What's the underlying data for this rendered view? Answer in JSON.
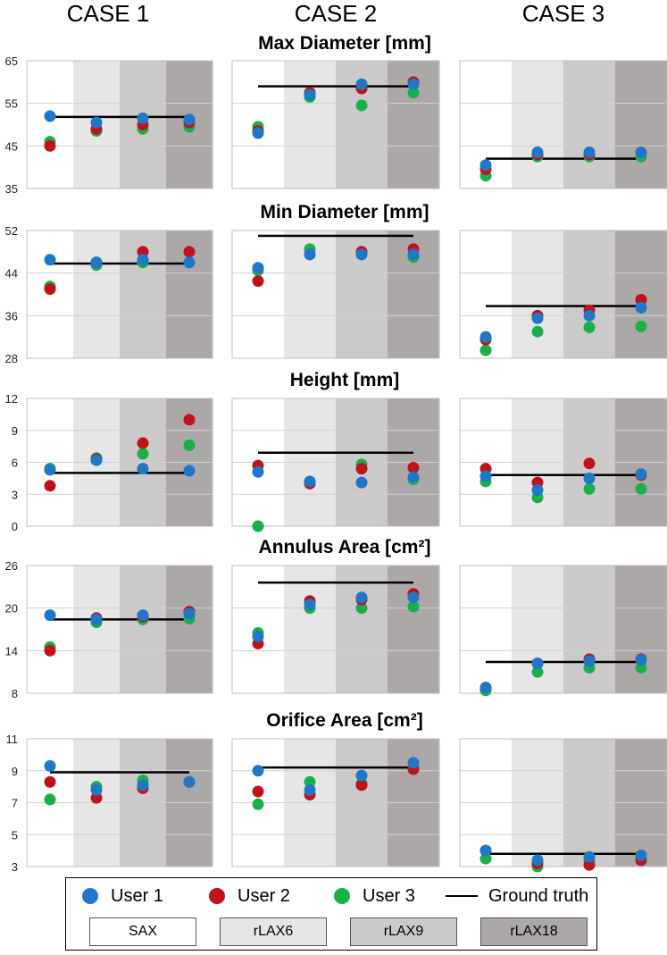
{
  "case_labels": [
    "CASE 1",
    "CASE 2",
    "CASE 3"
  ],
  "phase_labels": [
    "SAX",
    "rLAX6",
    "rLAX9",
    "rLAX18"
  ],
  "colors": {
    "user1": "#1f77c8",
    "user2": "#c0121a",
    "user3": "#19b04a",
    "ground_truth": "#000000",
    "band_sax": "#ffffff",
    "band_rlax6": "#e6e6e6",
    "band_rlax9": "#cbc9c9",
    "band_rlax18": "#ada8a8"
  },
  "legend": {
    "user1": "User 1",
    "user2": "User 2",
    "user3": "User 3",
    "ground_truth": "Ground truth",
    "sax": "SAX",
    "rlax6": "rLAX6",
    "rlax9": "rLAX9",
    "rlax18": "rLAX18"
  },
  "chart_data": [
    {
      "type": "scatter",
      "title": "Max Diameter [mm]",
      "ylim": [
        35,
        65
      ],
      "yticks": [
        "35",
        "45",
        "55",
        "65"
      ],
      "categories": [
        "SAX",
        "rLAX6",
        "rLAX9",
        "rLAX18"
      ],
      "cases": [
        {
          "name": "CASE 1",
          "ground_truth": 51.8,
          "series": [
            {
              "name": "User 1",
              "values": [
                52,
                50.5,
                51.5,
                51.2
              ]
            },
            {
              "name": "User 2",
              "values": [
                45,
                49,
                50,
                50.5
              ]
            },
            {
              "name": "User 3",
              "values": [
                46,
                48.5,
                49,
                49.5
              ]
            }
          ]
        },
        {
          "name": "CASE 2",
          "ground_truth": 59,
          "series": [
            {
              "name": "User 1",
              "values": [
                48,
                57,
                59.5,
                59.5
              ]
            },
            {
              "name": "User 2",
              "values": [
                48.5,
                57.5,
                58.5,
                60
              ]
            },
            {
              "name": "User 3",
              "values": [
                49.5,
                56.5,
                54.5,
                57.5
              ]
            }
          ]
        },
        {
          "name": "CASE 3",
          "ground_truth": 42,
          "series": [
            {
              "name": "User 1",
              "values": [
                40.5,
                43.5,
                43.5,
                43.5
              ]
            },
            {
              "name": "User 2",
              "values": [
                39.5,
                43,
                43,
                43.5
              ]
            },
            {
              "name": "User 3",
              "values": [
                38,
                42.5,
                42.5,
                42.5
              ]
            }
          ]
        }
      ]
    },
    {
      "type": "scatter",
      "title": "Min Diameter [mm]",
      "ylim": [
        28,
        52
      ],
      "yticks": [
        "28",
        "36",
        "44",
        "52"
      ],
      "categories": [
        "SAX",
        "rLAX6",
        "rLAX9",
        "rLAX18"
      ],
      "cases": [
        {
          "name": "CASE 1",
          "ground_truth": 45.8,
          "series": [
            {
              "name": "User 1",
              "values": [
                46.5,
                46,
                46.5,
                46
              ]
            },
            {
              "name": "User 2",
              "values": [
                41,
                46,
                48,
                48
              ]
            },
            {
              "name": "User 3",
              "values": [
                41.5,
                45.5,
                46,
                46
              ]
            }
          ]
        },
        {
          "name": "CASE 2",
          "ground_truth": 51,
          "series": [
            {
              "name": "User 1",
              "values": [
                45,
                47.5,
                47.5,
                47.5
              ]
            },
            {
              "name": "User 2",
              "values": [
                42.5,
                47.5,
                48,
                48.5
              ]
            },
            {
              "name": "User 3",
              "values": [
                44.5,
                48.5,
                47.5,
                47
              ]
            }
          ]
        },
        {
          "name": "CASE 3",
          "ground_truth": 37.8,
          "series": [
            {
              "name": "User 1",
              "values": [
                32,
                35.5,
                36,
                37.5
              ]
            },
            {
              "name": "User 2",
              "values": [
                31.5,
                36,
                37,
                39
              ]
            },
            {
              "name": "User 3",
              "values": [
                29.5,
                33,
                33.8,
                34
              ]
            }
          ]
        }
      ]
    },
    {
      "type": "scatter",
      "title": "Height [mm]",
      "ylim": [
        0,
        12
      ],
      "yticks": [
        "0",
        "3",
        "6",
        "9",
        "12"
      ],
      "categories": [
        "SAX",
        "rLAX6",
        "rLAX9",
        "rLAX18"
      ],
      "cases": [
        {
          "name": "CASE 1",
          "ground_truth": 5,
          "series": [
            {
              "name": "User 1",
              "values": [
                5.3,
                6.2,
                5.4,
                5.2
              ]
            },
            {
              "name": "User 2",
              "values": [
                3.8,
                6.3,
                7.8,
                10
              ]
            },
            {
              "name": "User 3",
              "values": [
                5.4,
                6.4,
                6.8,
                7.6
              ]
            }
          ]
        },
        {
          "name": "CASE 2",
          "ground_truth": 6.9,
          "series": [
            {
              "name": "User 1",
              "values": [
                5.1,
                4.2,
                4.1,
                4.6
              ]
            },
            {
              "name": "User 2",
              "values": [
                5.7,
                4,
                5.4,
                5.5
              ]
            },
            {
              "name": "User 3",
              "values": [
                0,
                4.2,
                5.8,
                4.4
              ]
            }
          ]
        },
        {
          "name": "CASE 3",
          "ground_truth": 4.8,
          "series": [
            {
              "name": "User 1",
              "values": [
                4.7,
                3.4,
                4.5,
                4.9
              ]
            },
            {
              "name": "User 2",
              "values": [
                5.4,
                4.1,
                5.9,
                4.8
              ]
            },
            {
              "name": "User 3",
              "values": [
                4.2,
                2.7,
                3.5,
                3.5
              ]
            }
          ]
        }
      ]
    },
    {
      "type": "scatter",
      "title": "Annulus Area [cm²]",
      "ylim": [
        8,
        26
      ],
      "yticks": [
        "8",
        "14",
        "20",
        "26"
      ],
      "categories": [
        "SAX",
        "rLAX6",
        "rLAX9",
        "rLAX18"
      ],
      "cases": [
        {
          "name": "CASE 1",
          "ground_truth": 18.4,
          "series": [
            {
              "name": "User 1",
              "values": [
                19,
                18.4,
                19,
                19.2
              ]
            },
            {
              "name": "User 2",
              "values": [
                14,
                18.6,
                18.8,
                19.5
              ]
            },
            {
              "name": "User 3",
              "values": [
                14.5,
                18,
                18.4,
                18.5
              ]
            }
          ]
        },
        {
          "name": "CASE 2",
          "ground_truth": 23.6,
          "series": [
            {
              "name": "User 1",
              "values": [
                16,
                20.5,
                21.5,
                21.5
              ]
            },
            {
              "name": "User 2",
              "values": [
                15,
                21,
                21.2,
                22
              ]
            },
            {
              "name": "User 3",
              "values": [
                16.5,
                20,
                20,
                20.2
              ]
            }
          ]
        },
        {
          "name": "CASE 3",
          "ground_truth": 12.4,
          "series": [
            {
              "name": "User 1",
              "values": [
                8.8,
                12.2,
                12.5,
                12.7
              ]
            },
            {
              "name": "User 2",
              "values": [
                8.8,
                12.2,
                12.8,
                12.8
              ]
            },
            {
              "name": "User 3",
              "values": [
                8.4,
                11,
                11.6,
                11.6
              ]
            }
          ]
        }
      ]
    },
    {
      "type": "scatter",
      "title": "Orifice Area [cm²]",
      "ylim": [
        3,
        11
      ],
      "yticks": [
        "3",
        "5",
        "7",
        "9",
        "11"
      ],
      "categories": [
        "SAX",
        "rLAX6",
        "rLAX9",
        "rLAX18"
      ],
      "cases": [
        {
          "name": "CASE 1",
          "ground_truth": 8.9,
          "series": [
            {
              "name": "User 1",
              "values": [
                9.3,
                7.8,
                8.1,
                8.3
              ]
            },
            {
              "name": "User 2",
              "values": [
                8.3,
                7.3,
                7.9,
                8.3
              ]
            },
            {
              "name": "User 3",
              "values": [
                7.2,
                8,
                8.4,
                8.3
              ]
            }
          ]
        },
        {
          "name": "CASE 2",
          "ground_truth": 9.2,
          "series": [
            {
              "name": "User 1",
              "values": [
                9,
                7.8,
                8.7,
                9.5
              ]
            },
            {
              "name": "User 2",
              "values": [
                7.7,
                7.5,
                8.1,
                9.1
              ]
            },
            {
              "name": "User 3",
              "values": [
                6.9,
                8.3,
                8.2,
                9.1
              ]
            }
          ]
        },
        {
          "name": "CASE 3",
          "ground_truth": 3.8,
          "series": [
            {
              "name": "User 1",
              "values": [
                4,
                3.4,
                3.6,
                3.7
              ]
            },
            {
              "name": "User 2",
              "values": [
                4,
                3.2,
                3.1,
                3.4
              ]
            },
            {
              "name": "User 3",
              "values": [
                3.5,
                3,
                3.4,
                3.5
              ]
            }
          ]
        }
      ]
    }
  ]
}
